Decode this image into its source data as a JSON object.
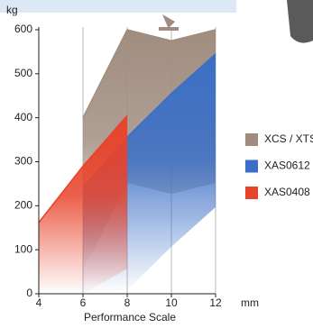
{
  "chart_data": {
    "type": "area",
    "xlabel": "Performance Scale",
    "ylabel": "kg",
    "xunit": "mm",
    "xlim": [
      4,
      12
    ],
    "xticks": [
      4,
      6,
      8,
      10,
      12
    ],
    "ylim": [
      0,
      600
    ],
    "yticks": [
      0,
      100,
      200,
      300,
      400,
      500,
      600
    ],
    "grid": true,
    "legend": "right",
    "series": [
      {
        "name": "XCS / XTS",
        "color": "#a08d80",
        "x": [
          6,
          8,
          10,
          12
        ],
        "values": [
          400,
          600,
          575,
          600
        ]
      },
      {
        "name": "XAS0612",
        "color": "#3b6fc6",
        "x": [
          6,
          8,
          10,
          12
        ],
        "values": [
          241,
          356,
          455,
          545
        ]
      },
      {
        "name": "XAS0408",
        "color": "#e8432b",
        "x": [
          4,
          6,
          8
        ],
        "values": [
          162,
          290,
          405
        ]
      }
    ]
  }
}
